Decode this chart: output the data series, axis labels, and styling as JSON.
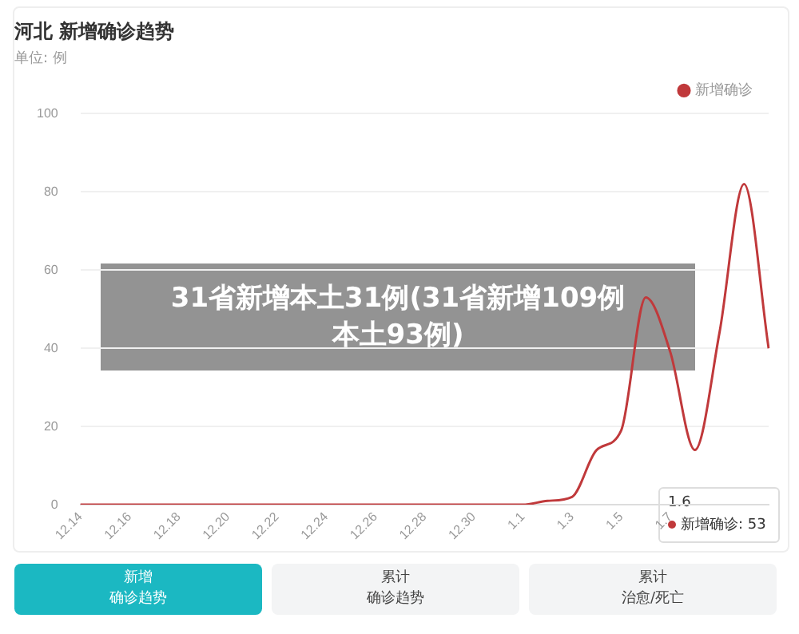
{
  "chart_data": {
    "type": "line",
    "title": "河北 新增确诊趋势",
    "subtitle": "单位: 例",
    "categories": [
      "12.14",
      null,
      "12.16",
      null,
      "12.18",
      null,
      "12.20",
      null,
      "12.22",
      null,
      "12.24",
      null,
      "12.26",
      null,
      "12.28",
      null,
      "12.30",
      null,
      "1.1",
      null,
      "1.3",
      null,
      "1.5",
      null,
      "1.7",
      null,
      null,
      null,
      null
    ],
    "series": [
      {
        "name": "新增确诊",
        "color": "#c0393b",
        "values": [
          0,
          0,
          0,
          0,
          0,
          0,
          0,
          0,
          0,
          0,
          0,
          0,
          0,
          0,
          0,
          0,
          0,
          0,
          0,
          1,
          2,
          14,
          19,
          53,
          39,
          14,
          44,
          82,
          40
        ]
      }
    ],
    "ylim": [
      0,
      100
    ],
    "yticks": [
      0,
      20,
      40,
      60,
      80,
      100
    ],
    "grid": "y",
    "legend": "top right",
    "marker": "none",
    "line_style": "solid",
    "annotations": [
      "31省新增本土31例(31省新增109例本土93例)",
      "1.6",
      "新增确诊: 53",
      "新增",
      "确诊趋势",
      "累计",
      "确诊趋势",
      "累计",
      "治愈/死亡"
    ]
  }
}
